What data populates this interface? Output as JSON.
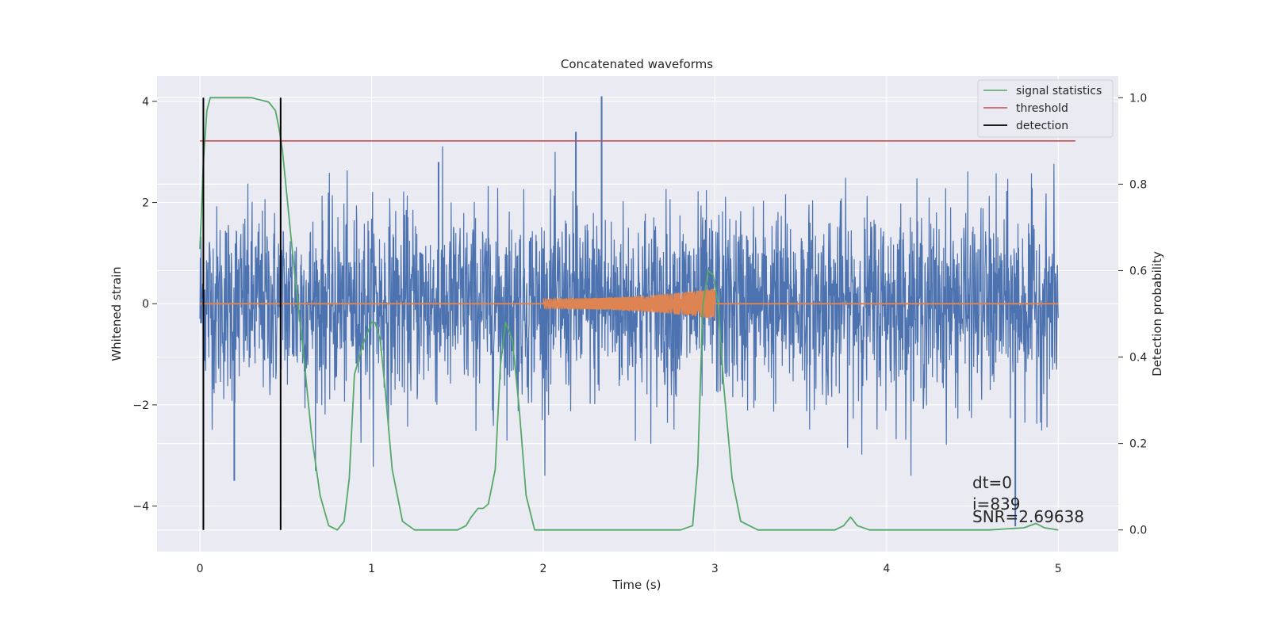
{
  "chart_data": {
    "type": "line",
    "title": "Concatenated waveforms",
    "xlabel": "Time (s)",
    "ylabel": "Whitened strain",
    "y2label": "Detection probability",
    "xlim": [
      -0.25,
      5.35
    ],
    "ylim": [
      -4.9,
      4.5
    ],
    "y2lim": [
      -0.05,
      1.05
    ],
    "grid": true,
    "legend_position": "top-right",
    "xticks": [
      "0",
      "1",
      "2",
      "3",
      "4",
      "5"
    ],
    "yticks": [
      "−4",
      "−2",
      "0",
      "2",
      "4"
    ],
    "y2ticks": [
      "0.0",
      "0.2",
      "0.4",
      "0.6",
      "0.8",
      "1.0"
    ],
    "series": [
      {
        "name": "",
        "axis": "left",
        "color": "#4c72b0",
        "kind": "noise",
        "x_range": [
          0,
          5
        ],
        "envelope": [
          -2.6,
          2.6
        ],
        "spikes": [
          [
            2.34,
            4.1
          ],
          [
            2.19,
            3.4
          ],
          [
            4.75,
            -4.4
          ],
          [
            0.2,
            -3.5
          ],
          [
            1.39,
            2.8
          ]
        ]
      },
      {
        "name": "",
        "axis": "left",
        "color": "#dd8452",
        "kind": "chirp",
        "x": [
          0,
          2,
          3,
          5
        ],
        "y": [
          0,
          0,
          0,
          0
        ],
        "chirp_range": [
          2.0,
          3.0
        ],
        "chirp_amplitude": [
          0.1,
          0.3
        ]
      },
      {
        "name": "signal statistics",
        "axis": "right",
        "color": "#55a868",
        "x": [
          0,
          0.02,
          0.04,
          0.06,
          0.1,
          0.2,
          0.3,
          0.4,
          0.44,
          0.46,
          0.48,
          0.5,
          0.52,
          0.55,
          0.6,
          0.65,
          0.7,
          0.75,
          0.8,
          0.84,
          0.87,
          0.9,
          0.95,
          1.0,
          1.02,
          1.05,
          1.08,
          1.12,
          1.18,
          1.25,
          1.35,
          1.5,
          1.55,
          1.58,
          1.62,
          1.65,
          1.68,
          1.72,
          1.75,
          1.78,
          1.82,
          1.86,
          1.9,
          1.95,
          2.2,
          2.5,
          2.8,
          2.87,
          2.9,
          2.93,
          2.96,
          2.99,
          3.02,
          3.05,
          3.1,
          3.15,
          3.25,
          3.5,
          3.7,
          3.75,
          3.79,
          3.83,
          3.9,
          4.1,
          4.3,
          4.6,
          4.8,
          4.87,
          4.92,
          5.0
        ],
        "y": [
          0.65,
          0.85,
          0.97,
          1.0,
          1.0,
          1.0,
          1.0,
          0.99,
          0.97,
          0.93,
          0.88,
          0.8,
          0.72,
          0.6,
          0.42,
          0.22,
          0.08,
          0.01,
          0.0,
          0.02,
          0.12,
          0.36,
          0.43,
          0.48,
          0.48,
          0.44,
          0.32,
          0.14,
          0.02,
          0.0,
          0.0,
          0.0,
          0.01,
          0.03,
          0.05,
          0.05,
          0.06,
          0.14,
          0.38,
          0.48,
          0.44,
          0.28,
          0.08,
          0.0,
          0.0,
          0.0,
          0.0,
          0.01,
          0.15,
          0.52,
          0.6,
          0.59,
          0.52,
          0.34,
          0.12,
          0.02,
          0.0,
          0.0,
          0.0,
          0.01,
          0.03,
          0.01,
          0.0,
          0.0,
          0.0,
          0.0,
          0.005,
          0.015,
          0.005,
          0.0
        ]
      },
      {
        "name": "threshold",
        "axis": "right",
        "color": "#c44e52",
        "x": [
          0,
          5.1
        ],
        "y": [
          0.9,
          0.9
        ]
      },
      {
        "name": "detection",
        "axis": "right",
        "color": "#000000",
        "kind": "vlines",
        "x": [
          0.02,
          0.47
        ],
        "y_range": [
          0.0,
          1.0
        ]
      }
    ],
    "annotations": [
      "dt=0",
      "i=839",
      "SNR=2.69638"
    ]
  }
}
